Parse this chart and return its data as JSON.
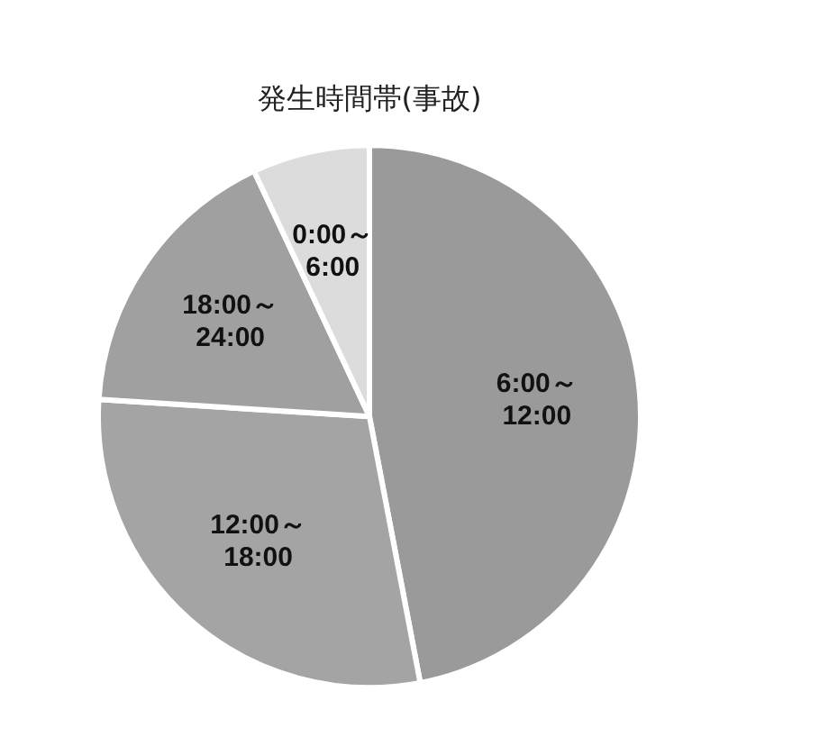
{
  "chart_data": {
    "type": "pie",
    "title": "発生時間帯(事故)",
    "categories": [
      "6:00～\n12:00",
      "12:00～\n18:00",
      "18:00～\n24:00",
      "0:00～\n6:00"
    ],
    "values": [
      47,
      29,
      17,
      7
    ],
    "colors": [
      "#9a9a9a",
      "#a4a4a4",
      "#a0a0a0",
      "#dcdcdc"
    ],
    "legend": false
  }
}
